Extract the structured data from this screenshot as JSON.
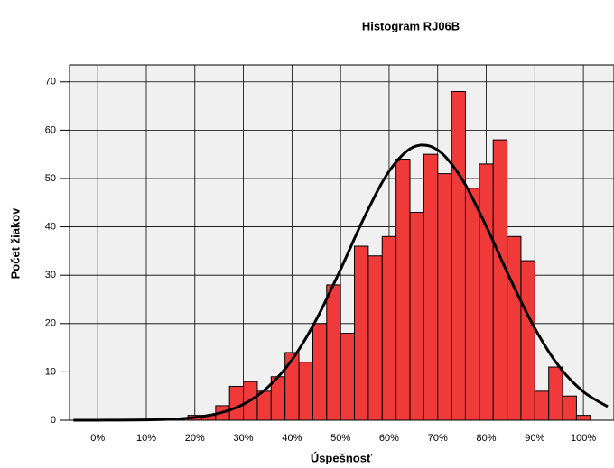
{
  "chart_data": {
    "type": "histogram",
    "title": "Histogram RJ06B",
    "xlabel": "Úspešnosť",
    "ylabel": "Počet žiakov",
    "bins": [
      18.57,
      21.43,
      24.29,
      27.14,
      30,
      32.86,
      35.71,
      38.57,
      41.43,
      44.29,
      47.14,
      50,
      52.86,
      55.71,
      58.57,
      61.43,
      64.29,
      67.14,
      70,
      72.86,
      75.71,
      78.57,
      81.43,
      84.29,
      87.14,
      90,
      92.86,
      95.71,
      98.57,
      101.43
    ],
    "values": [
      1,
      1,
      3,
      7,
      8,
      6,
      9,
      14,
      12,
      20,
      28,
      18,
      36,
      34,
      38,
      54,
      43,
      55,
      51,
      68,
      48,
      53,
      58,
      38,
      33,
      6,
      11,
      5,
      1
    ],
    "color": "#f03a3a",
    "curve": {
      "color": "#000000",
      "x": [
        -5,
        0,
        5,
        10,
        15,
        20,
        25,
        30,
        35,
        40,
        45,
        50,
        55,
        60,
        65,
        70,
        75,
        80,
        85,
        90,
        95,
        100,
        105
      ],
      "values": [
        0,
        0.01,
        0.02,
        0.07,
        0.2,
        0.57,
        1.45,
        3.3,
        6.8,
        12.5,
        20.8,
        31.2,
        42.2,
        51.5,
        56.5,
        55.9,
        49.9,
        40.1,
        29.1,
        19.0,
        11.1,
        5.9,
        2.8
      ]
    },
    "xlim": [
      -5.8,
      106.3
    ],
    "ylim": [
      0,
      73.5
    ],
    "xticks": [
      {
        "value": 0,
        "label": "0%"
      },
      {
        "value": 10,
        "label": "10%"
      },
      {
        "value": 20,
        "label": "20%"
      },
      {
        "value": 30,
        "label": "30%"
      },
      {
        "value": 40,
        "label": "40%"
      },
      {
        "value": 50,
        "label": "50%"
      },
      {
        "value": 60,
        "label": "60%"
      },
      {
        "value": 70,
        "label": "70%"
      },
      {
        "value": 80,
        "label": "80%"
      },
      {
        "value": 90,
        "label": "90%"
      },
      {
        "value": 100,
        "label": "100%"
      }
    ],
    "yticks": [
      0,
      10,
      20,
      30,
      40,
      50,
      60,
      70
    ],
    "grid": true
  }
}
